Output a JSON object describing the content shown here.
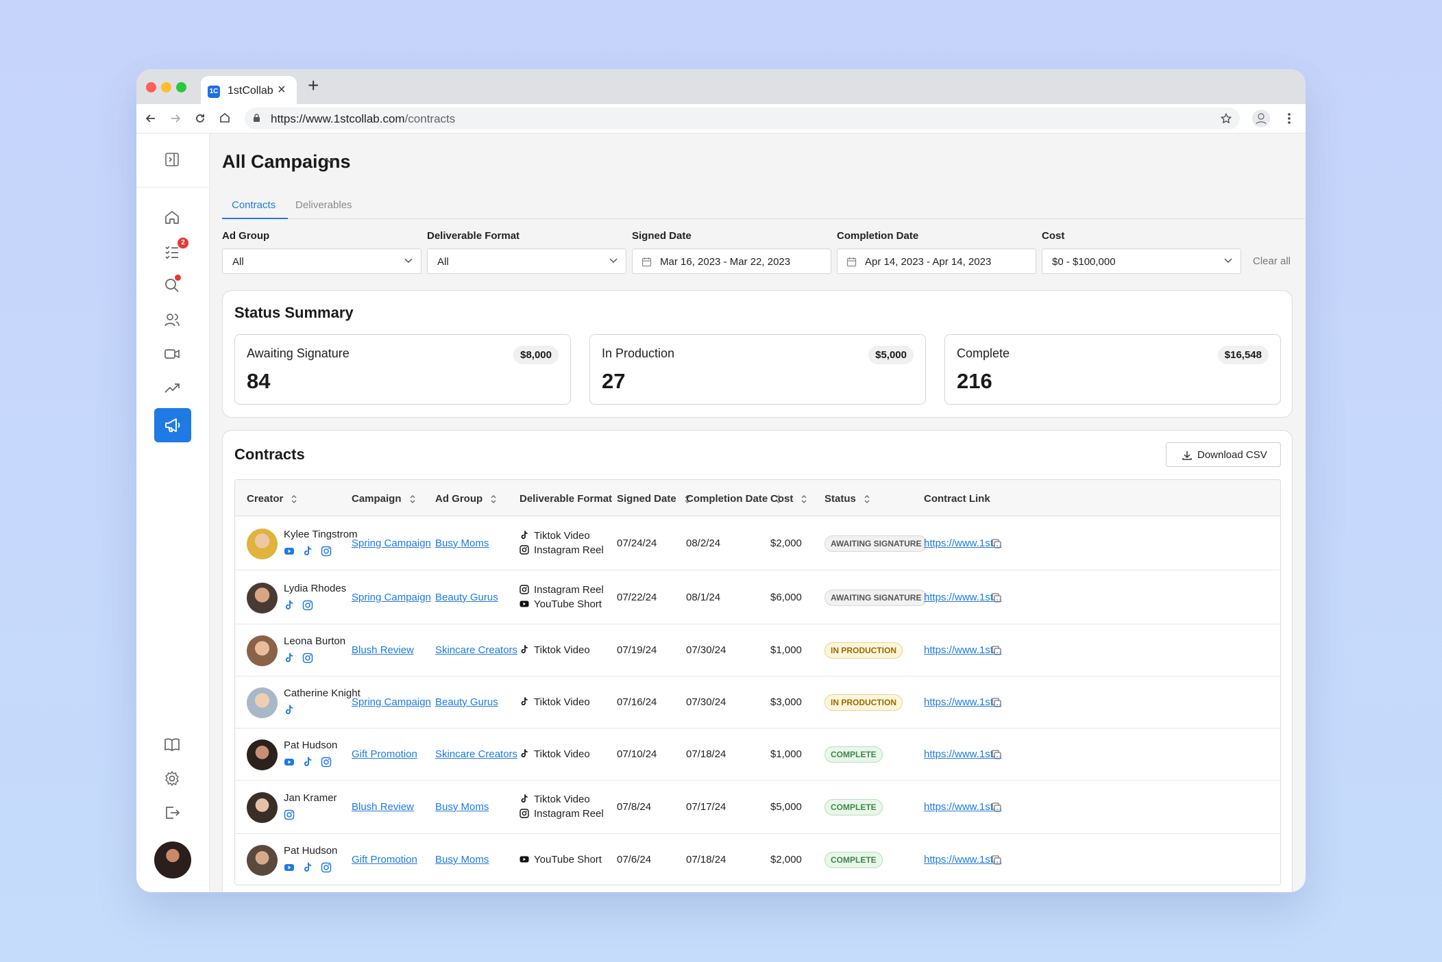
{
  "browser": {
    "tab_title": "1stCollab",
    "favicon_text": "1C",
    "url_host": "https://www.1stcollab.com",
    "url_path": "/contracts"
  },
  "page": {
    "title": "All Campaigns",
    "tabs": [
      {
        "label": "Contracts",
        "active": true
      },
      {
        "label": "Deliverables",
        "active": false
      }
    ]
  },
  "sidebar": {
    "tasks_badge": "2",
    "items": [
      "collapse-icon",
      "home-icon",
      "tasks-icon",
      "search-icon",
      "users-icon",
      "video-icon",
      "trending-icon",
      "megaphone-icon",
      "book-icon",
      "settings-icon",
      "logout-icon"
    ]
  },
  "filters": {
    "ad_group": {
      "label": "Ad Group",
      "value": "All"
    },
    "deliverable_format": {
      "label": "Deliverable Format",
      "value": "All"
    },
    "signed_date": {
      "label": "Signed Date",
      "value": "Mar 16, 2023 - Mar 22, 2023"
    },
    "completion_date": {
      "label": "Completion Date",
      "value": "Apr 14, 2023 - Apr 14, 2023"
    },
    "cost": {
      "label": "Cost",
      "value": "$0 - $100,000"
    },
    "clear_all": "Clear all"
  },
  "status_summary": {
    "title": "Status Summary",
    "cards": [
      {
        "label": "Awaiting Signature",
        "count": "84",
        "amount": "$8,000"
      },
      {
        "label": "In Production",
        "count": "27",
        "amount": "$5,000"
      },
      {
        "label": "Complete",
        "count": "216",
        "amount": "$16,548"
      }
    ]
  },
  "contracts": {
    "title": "Contracts",
    "download_label": "Download CSV",
    "columns": [
      "Creator",
      "Campaign",
      "Ad Group",
      "Deliverable Format",
      "Signed Date",
      "Completion Date",
      "Cost",
      "Status",
      "Contract Link"
    ],
    "rows": [
      {
        "creator": "Kylee Tingstrom",
        "socials": [
          "youtube",
          "tiktok",
          "instagram"
        ],
        "campaign": "Spring Campaign",
        "ad_group": "Busy Moms",
        "formats": [
          {
            "icon": "tiktok",
            "label": "Tiktok Video"
          },
          {
            "icon": "instagram",
            "label": "Instagram Reel"
          }
        ],
        "signed": "07/24/24",
        "completion": "08/2/24",
        "cost": "$2,000",
        "status": "AWAITING SIGNATURE",
        "status_type": "await",
        "link": "https://www.1st..."
      },
      {
        "creator": "Lydia Rhodes",
        "socials": [
          "tiktok",
          "instagram"
        ],
        "campaign": "Spring Campaign",
        "ad_group": "Beauty Gurus",
        "formats": [
          {
            "icon": "instagram",
            "label": "Instagram Reel"
          },
          {
            "icon": "youtube",
            "label": "YouTube Short"
          }
        ],
        "signed": "07/22/24",
        "completion": "08/1/24",
        "cost": "$6,000",
        "status": "AWAITING SIGNATURE",
        "status_type": "await",
        "link": "https://www.1st..."
      },
      {
        "creator": "Leona Burton",
        "socials": [
          "tiktok",
          "instagram"
        ],
        "campaign": "Blush Review",
        "ad_group": "Skincare Creators",
        "formats": [
          {
            "icon": "tiktok",
            "label": "Tiktok Video"
          }
        ],
        "signed": "07/19/24",
        "completion": "07/30/24",
        "cost": "$1,000",
        "status": "IN PRODUCTION",
        "status_type": "prod",
        "link": "https://www.1st..."
      },
      {
        "creator": "Catherine Knight",
        "socials": [
          "tiktok"
        ],
        "campaign": "Spring Campaign",
        "ad_group": "Beauty Gurus",
        "formats": [
          {
            "icon": "tiktok",
            "label": "Tiktok Video"
          }
        ],
        "signed": "07/16/24",
        "completion": "07/30/24",
        "cost": "$3,000",
        "status": "IN PRODUCTION",
        "status_type": "prod",
        "link": "https://www.1st..."
      },
      {
        "creator": "Pat Hudson",
        "socials": [
          "youtube",
          "tiktok",
          "instagram"
        ],
        "campaign": "Gift Promotion",
        "ad_group": "Skincare Creators",
        "formats": [
          {
            "icon": "tiktok",
            "label": "Tiktok Video"
          }
        ],
        "signed": "07/10/24",
        "completion": "07/18/24",
        "cost": "$1,000",
        "status": "COMPLETE",
        "status_type": "comp",
        "link": "https://www.1st..."
      },
      {
        "creator": "Jan Kramer",
        "socials": [
          "instagram"
        ],
        "campaign": "Blush Review",
        "ad_group": "Busy Moms",
        "formats": [
          {
            "icon": "tiktok",
            "label": "Tiktok Video"
          },
          {
            "icon": "instagram",
            "label": "Instagram Reel"
          }
        ],
        "signed": "07/8/24",
        "completion": "07/17/24",
        "cost": "$5,000",
        "status": "COMPLETE",
        "status_type": "comp",
        "link": "https://www.1st..."
      },
      {
        "creator": "Pat Hudson",
        "socials": [
          "youtube",
          "tiktok",
          "instagram"
        ],
        "campaign": "Gift Promotion",
        "ad_group": "Busy Moms",
        "formats": [
          {
            "icon": "youtube",
            "label": "YouTube Short"
          }
        ],
        "signed": "07/6/24",
        "completion": "07/18/24",
        "cost": "$2,000",
        "status": "COMPLETE",
        "status_type": "comp",
        "link": "https://www.1st..."
      }
    ]
  },
  "colors": {
    "accent": "#1f7ae6",
    "awaiting": "#555555",
    "in_production": "#9a6a00",
    "complete": "#3f8a48"
  }
}
